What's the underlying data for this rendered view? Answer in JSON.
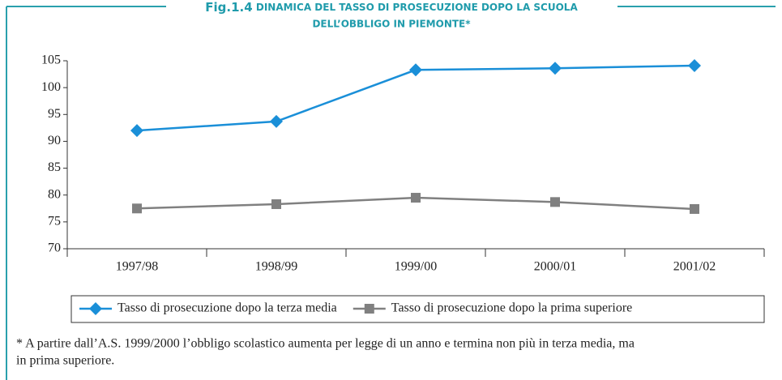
{
  "chart_data": {
    "type": "line",
    "figure_label": "Fig.1.4",
    "title": [
      "DINAMICA DEL TASSO DI PROSECUZIONE DOPO LA SCUOLA",
      "DELL’OBBLIGO IN PIEMONTE*"
    ],
    "categories": [
      "1997/98",
      "1998/99",
      "1999/00",
      "2000/01",
      "2001/02"
    ],
    "series": [
      {
        "name": "Tasso di prosecuzione dopo la terza media",
        "color": "#1a8fd8",
        "marker": "diamond",
        "values": [
          92.0,
          93.7,
          103.3,
          103.6,
          104.1
        ]
      },
      {
        "name": "Tasso di prosecuzione dopo la prima superiore",
        "color": "#808080",
        "marker": "square",
        "values": [
          77.5,
          78.3,
          79.5,
          78.7,
          77.4
        ]
      }
    ],
    "ylim": [
      70,
      105
    ],
    "yticks": [
      70,
      75,
      80,
      85,
      90,
      95,
      100,
      105
    ],
    "legend": "bottom",
    "footnote": [
      "* A partire dall’A.S. 1999/2000 l’obbligo scolastico aumenta per legge di un anno e termina non più in terza media, ma",
      "in prima superiore."
    ]
  }
}
